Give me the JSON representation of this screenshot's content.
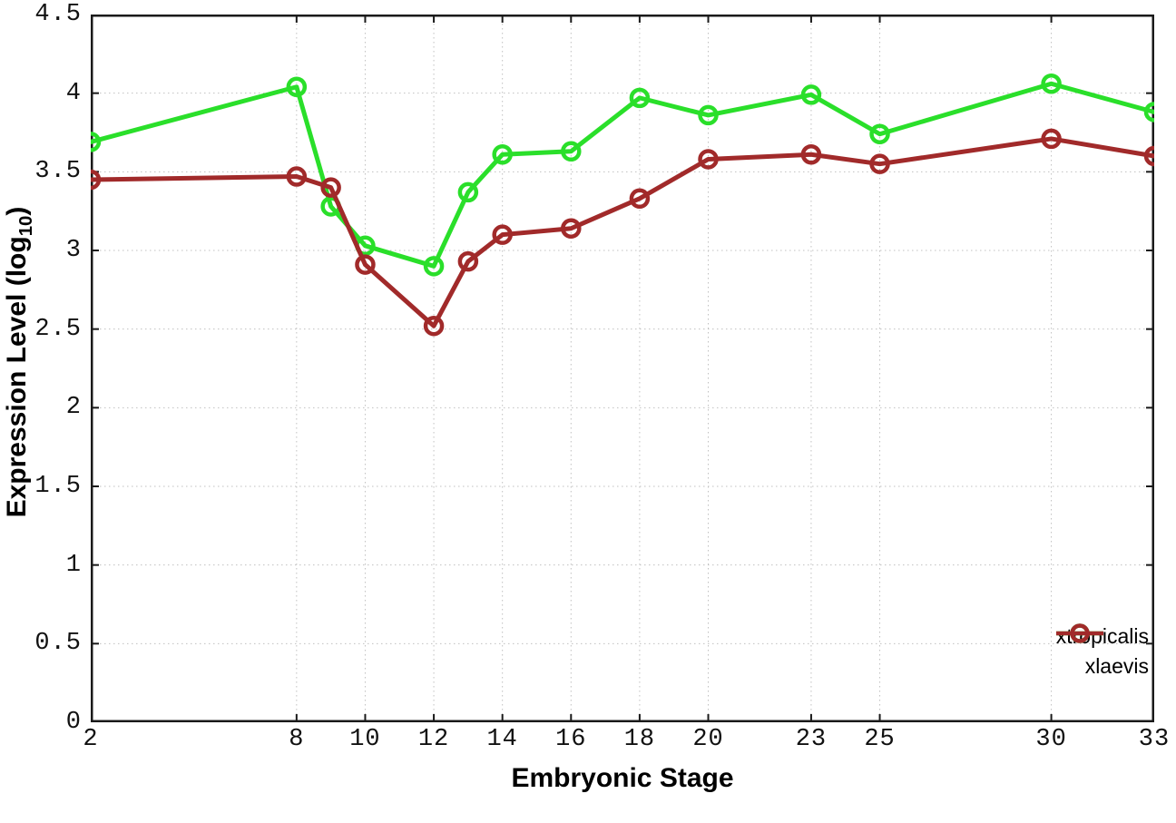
{
  "chart_data": {
    "type": "line",
    "title": "",
    "xlabel": "Embryonic Stage",
    "ylabel": "Expression Level (log10)",
    "ylabel_parts": {
      "prefix": "Expression Level (log",
      "subscript": "10",
      "suffix": ")"
    },
    "x": [
      2,
      8,
      9,
      10,
      12,
      13,
      14,
      16,
      18,
      20,
      23,
      25,
      30,
      33
    ],
    "xticks": [
      2,
      8,
      10,
      12,
      14,
      16,
      18,
      20,
      23,
      25,
      30,
      33
    ],
    "yticks": [
      0,
      0.5,
      1,
      1.5,
      2,
      2.5,
      3,
      3.5,
      4,
      4.5
    ],
    "xlim": [
      2,
      33
    ],
    "ylim": [
      0,
      4.5
    ],
    "grid": true,
    "legend_position": "bottom-right",
    "series": [
      {
        "name": "xtropicalis",
        "color": "#2ADF2A",
        "values": [
          3.69,
          4.04,
          3.28,
          3.03,
          2.9,
          3.37,
          3.61,
          3.63,
          3.97,
          3.86,
          3.99,
          3.74,
          4.06,
          3.88
        ]
      },
      {
        "name": "xlaevis",
        "color": "#A12A2A",
        "values": [
          3.45,
          3.47,
          3.4,
          2.91,
          2.52,
          2.93,
          3.1,
          3.14,
          3.33,
          3.58,
          3.61,
          3.55,
          3.71,
          3.6
        ]
      }
    ],
    "colors": {
      "background": "#ffffff",
      "border": "#1a1a1a",
      "grid": "#c0c0c0",
      "text": "#000000"
    }
  }
}
